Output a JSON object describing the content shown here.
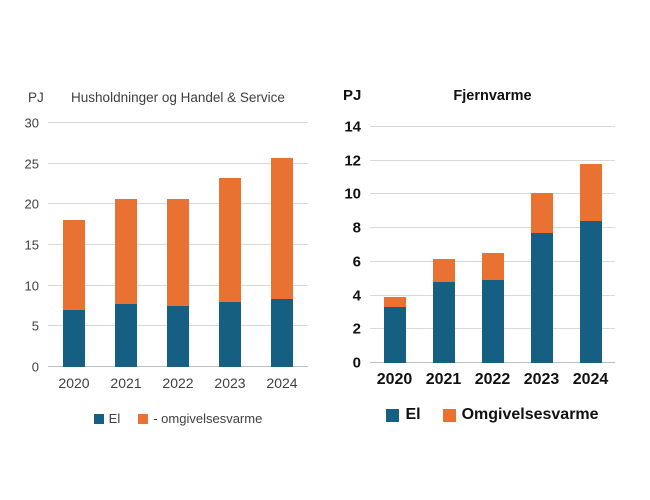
{
  "page": {
    "background": "#ffffff"
  },
  "colors": {
    "el": "#156082",
    "omgivelsesvarme": "#E97132",
    "grid": "#d9d9d9"
  },
  "chart_data": [
    {
      "type": "bar",
      "stacked": true,
      "title": "Husholdninger og Handel & Service",
      "ylabel": "PJ",
      "categories": [
        "2020",
        "2021",
        "2022",
        "2023",
        "2024"
      ],
      "series": [
        {
          "name": "El",
          "color": "#156082",
          "values": [
            7.0,
            7.7,
            7.5,
            8.0,
            8.4
          ]
        },
        {
          "name": "- omgivelsesvarme",
          "color": "#E97132",
          "values": [
            11.1,
            13.0,
            13.2,
            15.3,
            17.3
          ]
        }
      ],
      "totals": [
        18.1,
        20.7,
        20.7,
        23.3,
        25.7
      ],
      "ylim": [
        0,
        30
      ],
      "ytick_step": 5,
      "yticks": [
        0,
        5,
        10,
        15,
        20,
        25,
        30
      ],
      "grid": true,
      "legend_position": "bottom"
    },
    {
      "type": "bar",
      "stacked": true,
      "title": "Fjernvarme",
      "ylabel": "PJ",
      "categories": [
        "2020",
        "2021",
        "2022",
        "2023",
        "2024"
      ],
      "series": [
        {
          "name": "El",
          "color": "#156082",
          "values": [
            3.3,
            4.8,
            4.9,
            7.7,
            8.4
          ]
        },
        {
          "name": "Omgivelsesvarme",
          "color": "#E97132",
          "values": [
            0.6,
            1.4,
            1.6,
            2.4,
            3.4
          ]
        }
      ],
      "totals": [
        3.9,
        6.2,
        6.5,
        10.1,
        11.8
      ],
      "ylim": [
        0,
        14
      ],
      "ytick_step": 2,
      "yticks": [
        0,
        2,
        4,
        6,
        8,
        10,
        12,
        14
      ],
      "grid": true,
      "legend_position": "bottom"
    }
  ]
}
